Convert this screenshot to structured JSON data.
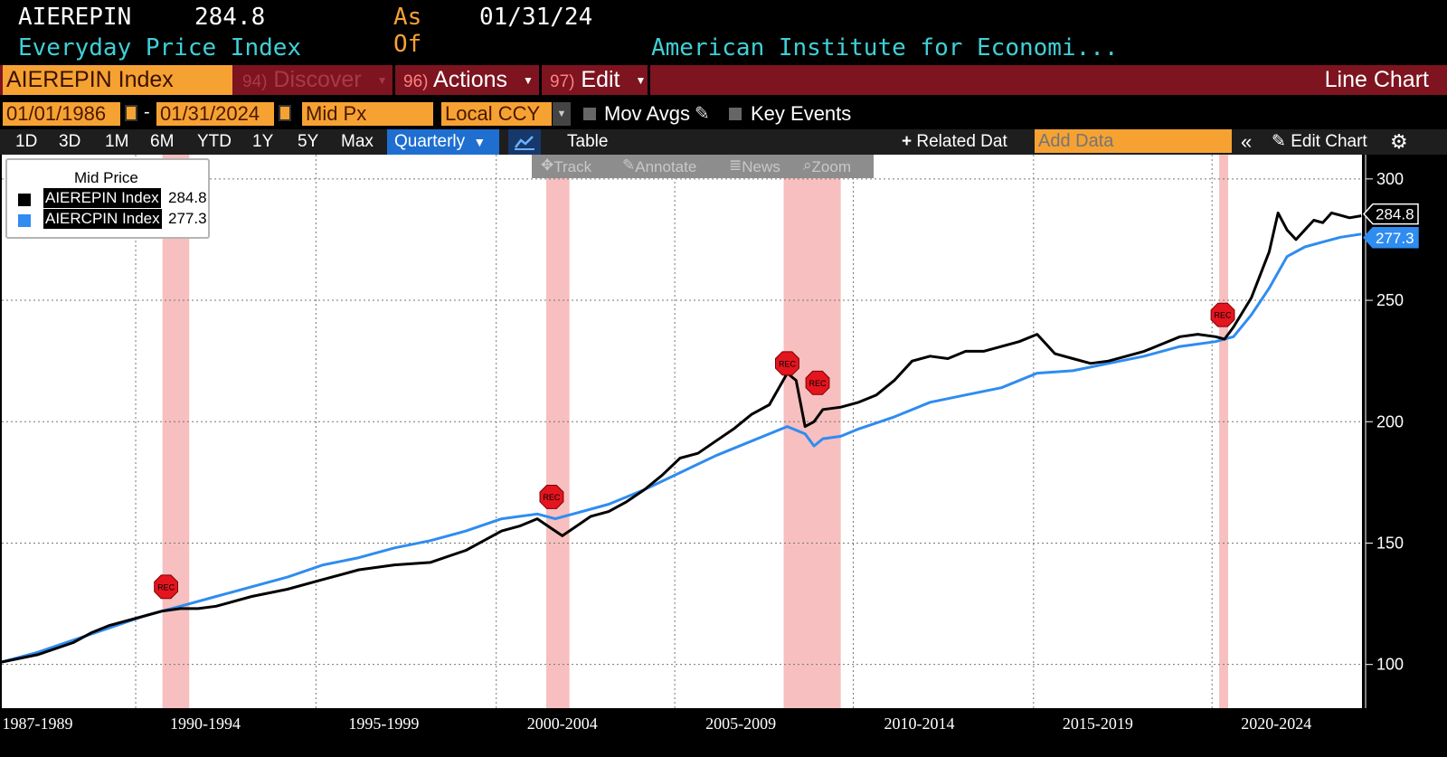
{
  "header": {
    "ticker": "AIEREPIN",
    "price": "284.8",
    "as_of_label": "As Of",
    "as_of_date": "01/31/24",
    "name": "Everyday Price Index",
    "source": "American Institute for Economi..."
  },
  "menu_bar": {
    "security": "AIEREPIN Index",
    "discover_key": "94)",
    "discover": "Discover",
    "actions_key": "96)",
    "actions": "Actions",
    "edit_key": "97)",
    "edit": "Edit",
    "chart_type": "Line Chart"
  },
  "controls": {
    "start_date": "01/01/1986",
    "dash": "-",
    "end_date": "01/31/2024",
    "field": "Mid Px",
    "currency": "Local CCY",
    "mov_avgs": "Mov Avgs",
    "key_events": "Key Events"
  },
  "range_bar": {
    "periods": [
      "1D",
      "3D",
      "1M",
      "6M",
      "YTD",
      "1Y",
      "5Y",
      "Max"
    ],
    "frequency": "Quarterly",
    "table": "Table",
    "related": "Related Dat",
    "add_data_placeholder": "Add Data",
    "edit_chart": "Edit Chart"
  },
  "chart_toolbar": {
    "track": "Track",
    "annotate": "Annotate",
    "news": "News",
    "zoom": "Zoom"
  },
  "legend": {
    "title": "Mid Price",
    "items": [
      {
        "name": "AIEREPIN Index",
        "value": "284.8",
        "color": "#000000"
      },
      {
        "name": "AIERCPIN Index",
        "value": "277.3",
        "color": "#2f8cf0"
      }
    ]
  },
  "colors": {
    "background": "#000000",
    "plot_background": "#ffffff",
    "recession_band": "#f6b8b8",
    "epi_line": "#000000",
    "cpi_line": "#2f8cf0",
    "menu_bar": "#7d1420",
    "accent_orange": "#f6a233"
  },
  "chart_data": {
    "type": "line",
    "x_tick_labels": [
      "1987-1989",
      "1990-1994",
      "1995-1999",
      "2000-2004",
      "2005-2009",
      "2010-2014",
      "2015-2019",
      "2020-2024"
    ],
    "y_ticks": [
      100,
      150,
      200,
      250,
      300
    ],
    "ylim": [
      82,
      310
    ],
    "xlim": [
      1986.0,
      2024.1
    ],
    "grid": true,
    "legend_position": "top-left",
    "recession_marker_label": "REC",
    "recessions": [
      [
        1990.5,
        1991.25
      ],
      [
        2001.25,
        2001.9
      ],
      [
        2007.9,
        2009.5
      ],
      [
        2020.1,
        2020.35
      ]
    ],
    "series": [
      {
        "name": "AIEREPIN Index",
        "last_label": "284.8",
        "x": [
          1986.0,
          1987.0,
          1988.0,
          1988.5,
          1989.0,
          1990.0,
          1990.5,
          1991.0,
          1991.5,
          1992.0,
          1993.0,
          1994.0,
          1995.0,
          1996.0,
          1997.0,
          1998.0,
          1999.0,
          1999.5,
          2000.0,
          2000.5,
          2001.0,
          2001.3,
          2001.7,
          2002.0,
          2002.5,
          2003.0,
          2003.5,
          2004.0,
          2004.5,
          2005.0,
          2005.5,
          2006.0,
          2006.5,
          2007.0,
          2007.5,
          2008.0,
          2008.25,
          2008.5,
          2008.75,
          2009.0,
          2009.5,
          2010.0,
          2010.5,
          2011.0,
          2011.5,
          2012.0,
          2012.5,
          2013.0,
          2013.5,
          2014.0,
          2014.5,
          2015.0,
          2015.5,
          2016.0,
          2016.5,
          2017.0,
          2017.5,
          2018.0,
          2018.5,
          2019.0,
          2019.5,
          2020.0,
          2020.25,
          2020.5,
          2021.0,
          2021.5,
          2021.75,
          2022.0,
          2022.25,
          2022.5,
          2022.75,
          2023.0,
          2023.25,
          2023.5,
          2023.75,
          2024.08
        ],
        "values": [
          101,
          104,
          109,
          113,
          116,
          120,
          122,
          123,
          123,
          124,
          128,
          131,
          135,
          139,
          141,
          142,
          147,
          151,
          155,
          157,
          160,
          157,
          153,
          156,
          161,
          163,
          167,
          172,
          178,
          185,
          187,
          192,
          197,
          203,
          207,
          220,
          217,
          198,
          200,
          205,
          206,
          208,
          211,
          217,
          225,
          227,
          226,
          229,
          229,
          231,
          233,
          236,
          228,
          226,
          224,
          225,
          227,
          229,
          232,
          235,
          236,
          235,
          234,
          239,
          251,
          270,
          286,
          279,
          275,
          279,
          283,
          282,
          286,
          285,
          284,
          284.8
        ]
      },
      {
        "name": "AIERCPIN Index",
        "last_label": "277.3",
        "x": [
          1986.0,
          1987.0,
          1988.0,
          1989.0,
          1990.0,
          1990.5,
          1991.0,
          1992.0,
          1993.0,
          1994.0,
          1995.0,
          1996.0,
          1997.0,
          1998.0,
          1999.0,
          2000.0,
          2001.0,
          2001.5,
          2002.0,
          2003.0,
          2004.0,
          2005.0,
          2006.0,
          2007.0,
          2008.0,
          2008.5,
          2008.75,
          2009.0,
          2009.5,
          2010.0,
          2011.0,
          2012.0,
          2013.0,
          2014.0,
          2015.0,
          2016.0,
          2017.0,
          2018.0,
          2019.0,
          2020.0,
          2020.5,
          2021.0,
          2021.5,
          2022.0,
          2022.5,
          2023.0,
          2023.5,
          2024.08
        ],
        "values": [
          101,
          105,
          110,
          115,
          120,
          122,
          124,
          128,
          132,
          136,
          141,
          144,
          148,
          151,
          155,
          160,
          162,
          160,
          162,
          166,
          172,
          179,
          186,
          192,
          198,
          195,
          190,
          193,
          194,
          197,
          202,
          208,
          211,
          214,
          220,
          221,
          224,
          227,
          231,
          233,
          235,
          244,
          255,
          268,
          272,
          274,
          276,
          277.3
        ]
      }
    ]
  }
}
